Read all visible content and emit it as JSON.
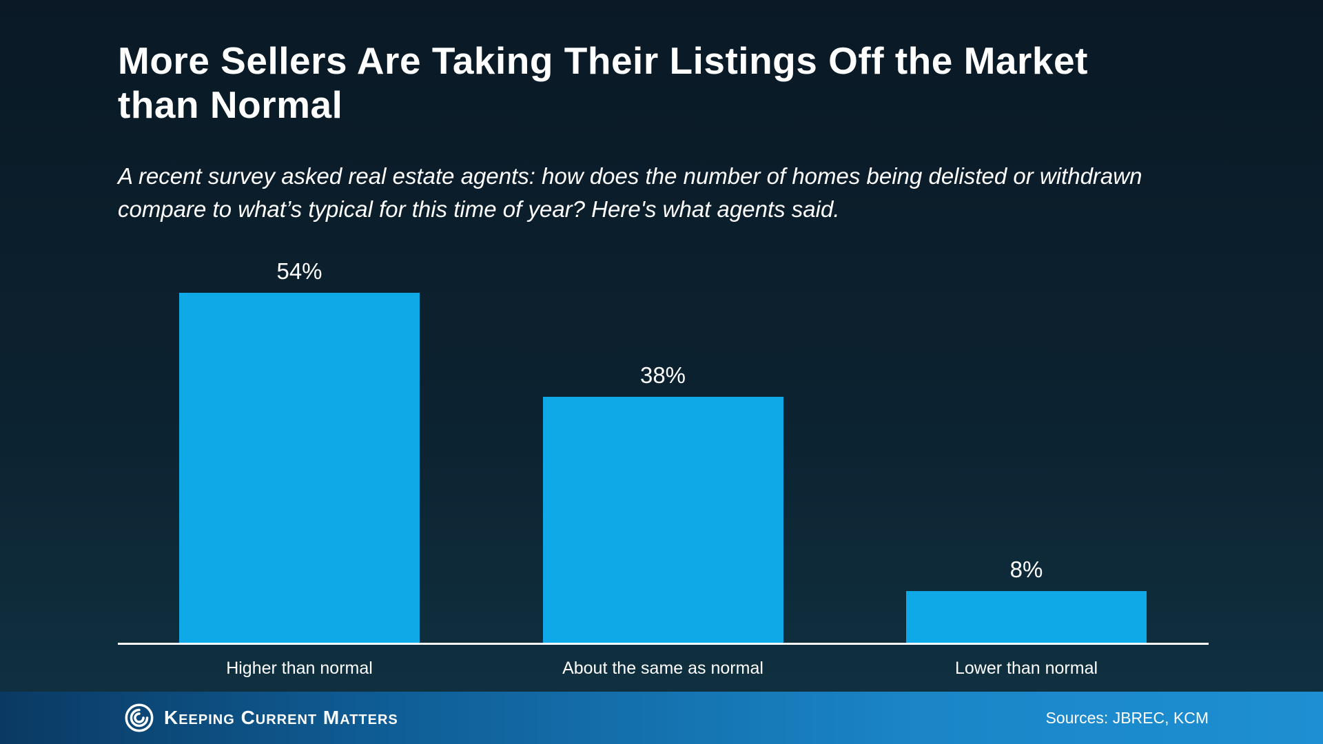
{
  "header": {
    "title": "More Sellers Are Taking Their Listings Off the Market than Normal",
    "subtitle": "A recent survey asked real estate agents: how does the number of homes being delisted or withdrawn compare to what’s typical for this time of year? Here's what agents said."
  },
  "chart_data": {
    "type": "bar",
    "categories": [
      "Higher than normal",
      "About the same as normal",
      "Lower than normal"
    ],
    "values": [
      54,
      38,
      8
    ],
    "value_labels": [
      "54%",
      "38%",
      "8%"
    ],
    "title": "",
    "xlabel": "",
    "ylabel": "",
    "ylim": [
      0,
      60
    ],
    "grid": false,
    "legend": false,
    "bar_color": "#0ea9e6",
    "axis_color": "#ffffff"
  },
  "footer": {
    "brand": "Keeping Current Matters",
    "logo": "kcm-swirl-logo",
    "sources": "Sources: JBREC, KCM"
  },
  "colors": {
    "background_top": "#0a1925",
    "background_bottom": "#103141",
    "text": "#ffffff",
    "footer_gradient_start": "#0a3a63",
    "footer_gradient_end": "#1e8fd2"
  }
}
